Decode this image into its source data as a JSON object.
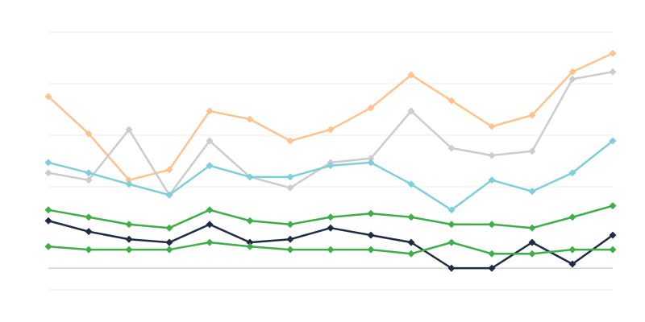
{
  "chart_data": {
    "type": "line",
    "categories": [
      null,
      null,
      null,
      null,
      null,
      null,
      null,
      null,
      null,
      null,
      null,
      null,
      null,
      null,
      null
    ],
    "ylim": [
      0,
      50
    ],
    "yticks": [
      0,
      20,
      30,
      40,
      50
    ],
    "grid": true,
    "baseline": 4.2,
    "series": [
      {
        "color": "#fdc38f",
        "values": [
          37.5,
          30.3,
          21.3,
          23.3,
          34.7,
          33.1,
          28.9,
          31.1,
          35.3,
          41.7,
          36.7,
          31.7,
          33.9,
          42.3,
          45.9
        ]
      },
      {
        "color": "#cccccc",
        "values": [
          22.7,
          21.3,
          31.1,
          18.4,
          28.9,
          21.9,
          19.8,
          24.7,
          25.5,
          34.7,
          27.5,
          26.1,
          26.9,
          40.9,
          42.3
        ]
      },
      {
        "color": "#7fcfd8",
        "values": [
          24.7,
          22.7,
          20.5,
          18.4,
          24.1,
          21.9,
          21.9,
          24.1,
          24.7,
          20.5,
          15.5,
          21.3,
          19.1,
          22.7,
          28.9
        ]
      },
      {
        "color": "#3fae49",
        "values": [
          15.5,
          14.1,
          12.7,
          12.0,
          15.5,
          13.4,
          12.7,
          14.1,
          14.8,
          14.1,
          12.7,
          12.7,
          12.0,
          14.1,
          16.3
        ]
      },
      {
        "color": "#1f2a44",
        "values": [
          13.4,
          11.3,
          9.8,
          9.2,
          12.7,
          9.2,
          9.8,
          12.0,
          10.6,
          9.2,
          4.2,
          4.2,
          9.2,
          5.0,
          10.6
        ]
      },
      {
        "color": "#3fae49",
        "values": [
          8.4,
          7.8,
          7.8,
          7.8,
          9.2,
          8.4,
          7.8,
          7.8,
          7.8,
          7.0,
          9.2,
          7.0,
          7.0,
          7.8,
          7.8
        ]
      }
    ]
  }
}
